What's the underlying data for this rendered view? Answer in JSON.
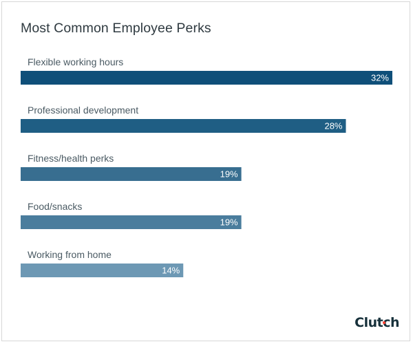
{
  "chart_data": {
    "type": "bar",
    "orientation": "horizontal",
    "title": "Most Common Employee Perks",
    "categories": [
      "Flexible working hours",
      "Professional development",
      "Fitness/health perks",
      "Food/snacks",
      "Working from home"
    ],
    "values": [
      32,
      28,
      19,
      19,
      14
    ],
    "value_labels": [
      "32%",
      "28%",
      "19%",
      "19%",
      "14%"
    ],
    "unit": "%",
    "bar_colors": [
      "#0f4f79",
      "#1f5e84",
      "#386e90",
      "#4a7d9d",
      "#6d98b4"
    ],
    "grid": false,
    "legend": "none"
  },
  "brand": {
    "text": "Clutch",
    "mark_color": "#ff3d2e",
    "text_color": "#17313b"
  }
}
